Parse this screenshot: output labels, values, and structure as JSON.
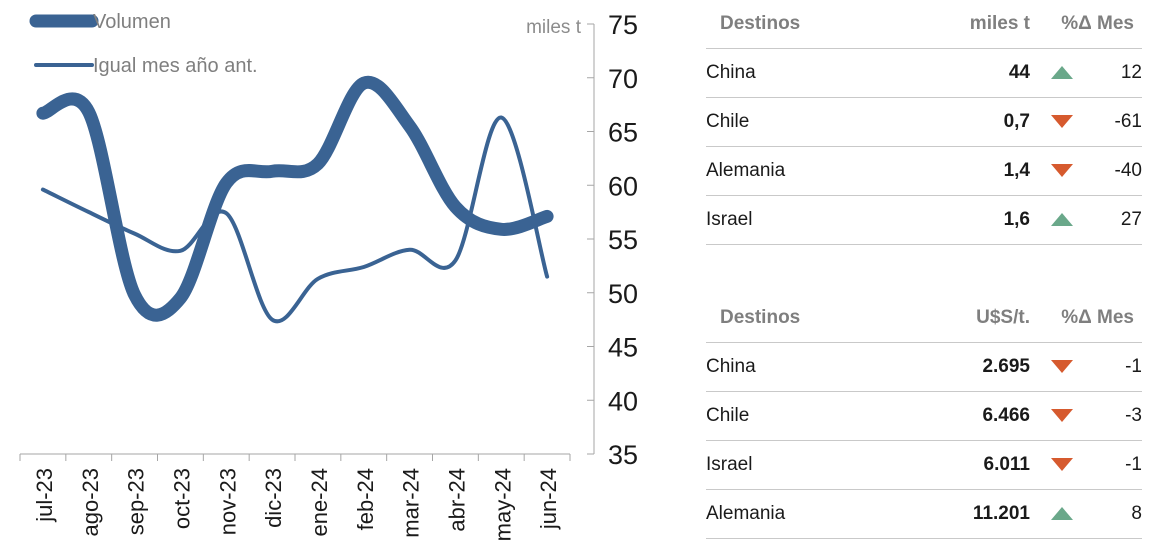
{
  "chart_data": {
    "type": "line",
    "categories": [
      "jul-23",
      "ago-23",
      "sep-23",
      "oct-23",
      "nov-23",
      "dic-23",
      "ene-24",
      "feb-24",
      "mar-24",
      "abr-24",
      "may-24",
      "jun-24"
    ],
    "series": [
      {
        "name": "Volumen",
        "values": [
          66.7,
          66.8,
          49.8,
          49.5,
          60.2,
          61.3,
          62.0,
          69.5,
          65.5,
          58.0,
          55.9,
          57.1
        ],
        "color": "#3a6393",
        "style": "thick"
      },
      {
        "name": "Igual mes año ant.",
        "values": [
          59.6,
          57.5,
          55.5,
          53.9,
          57.4,
          47.5,
          51.3,
          52.4,
          54.0,
          53.0,
          66.3,
          51.5
        ],
        "color": "#3a6393",
        "style": "thin"
      }
    ],
    "y_axis": {
      "label": "miles t",
      "min": 35,
      "max": 75,
      "ticks": [
        35,
        40,
        45,
        50,
        55,
        60,
        65,
        70,
        75
      ],
      "position": "right"
    },
    "legend": "top-left",
    "grid": false
  },
  "tables": [
    {
      "headers": [
        "Destinos",
        "miles t",
        "%Δ Mes"
      ],
      "rows": [
        {
          "name": "China",
          "value": "44",
          "trend": "up",
          "pct": "12"
        },
        {
          "name": "Chile",
          "value": "0,7",
          "trend": "down",
          "pct": "-61"
        },
        {
          "name": "Alemania",
          "value": "1,4",
          "trend": "down",
          "pct": "-40"
        },
        {
          "name": "Israel",
          "value": "1,6",
          "trend": "up",
          "pct": "27"
        }
      ]
    },
    {
      "headers": [
        "Destinos",
        "U$S/t.",
        "%Δ Mes"
      ],
      "rows": [
        {
          "name": "China",
          "value": "2.695",
          "trend": "down",
          "pct": "-1"
        },
        {
          "name": "Chile",
          "value": "6.466",
          "trend": "down",
          "pct": "-3"
        },
        {
          "name": "Israel",
          "value": "6.011",
          "trend": "down",
          "pct": "-1"
        },
        {
          "name": "Alemania",
          "value": "11.201",
          "trend": "up",
          "pct": "8"
        }
      ]
    }
  ],
  "colors": {
    "up": "#6aa88a",
    "down": "#d65a2e",
    "line": "#3a6393"
  }
}
